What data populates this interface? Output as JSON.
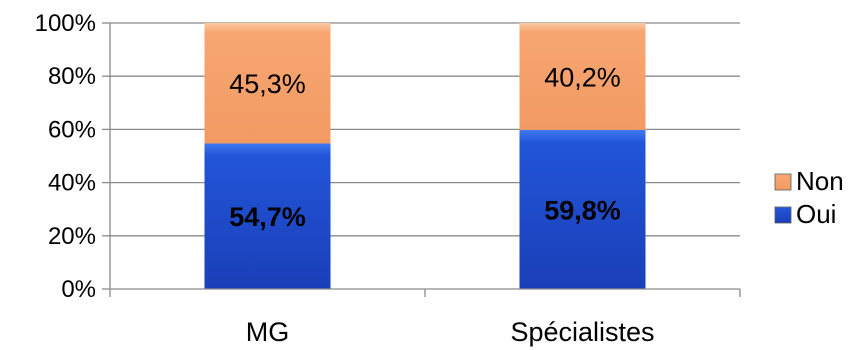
{
  "chart_data": {
    "type": "bar",
    "stacked": true,
    "categories": [
      "MG",
      "Spécialistes"
    ],
    "series": [
      {
        "name": "Oui",
        "values": [
          54.7,
          59.8
        ],
        "labels": [
          "54,7%",
          "59,8%"
        ],
        "color": "#1f4fd0",
        "label_weight": "bold"
      },
      {
        "name": "Non",
        "values": [
          45.3,
          40.2
        ],
        "labels": [
          "45,3%",
          "40,2%"
        ],
        "color": "#f5a06c",
        "label_weight": "normal"
      }
    ],
    "y_ticks": [
      "0%",
      "20%",
      "40%",
      "60%",
      "80%",
      "100%"
    ],
    "ylim": [
      0,
      100
    ],
    "title": "",
    "xlabel": "",
    "ylabel": "",
    "grid": true,
    "legend_position": "right",
    "legend_order": [
      "Non",
      "Oui"
    ]
  }
}
